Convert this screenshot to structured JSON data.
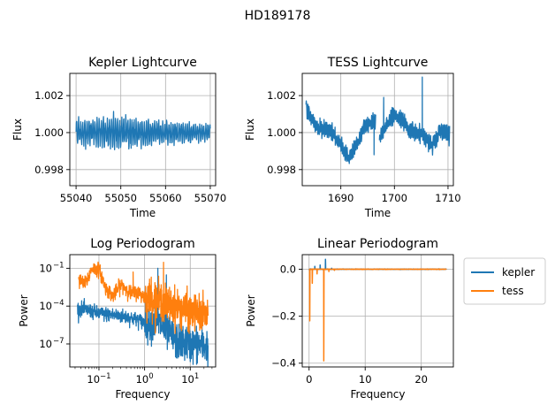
{
  "title": "HD189178",
  "colors": {
    "kepler": "#1f77b4",
    "tess": "#ff7f0e",
    "grid": "#b0b0b0",
    "axes": "#000000",
    "legend_border": "#cccccc"
  },
  "legend": {
    "placement": "right-of-bottom-right-panel",
    "entries": [
      {
        "name": "kepler",
        "color": "#1f77b4"
      },
      {
        "name": "tess",
        "color": "#ff7f0e"
      }
    ]
  },
  "chart_data": [
    {
      "id": "kepler-lightcurve",
      "type": "line",
      "title": "Kepler Lightcurve",
      "xlabel": "Time",
      "ylabel": "Flux",
      "xlim": [
        55038.6,
        55071.2
      ],
      "ylim": [
        0.99713,
        1.0032
      ],
      "xticks": [
        55040,
        55050,
        55060,
        55070
      ],
      "yticks": [
        0.998,
        1.0,
        1.002
      ],
      "ytick_labels": [
        "0.998",
        "1.000",
        "1.002"
      ],
      "grid": true,
      "series": [
        {
          "color": "#1f77b4",
          "x_range": [
            55040,
            55070
          ],
          "baseline": 1.0,
          "envelope": [
            [
              55040,
              0.0008
            ],
            [
              55045,
              0.0009
            ],
            [
              55050,
              0.00105
            ],
            [
              55055,
              0.0009
            ],
            [
              55060,
              0.00065
            ],
            [
              55065,
              0.0006
            ],
            [
              55070,
              0.0005
            ]
          ]
        }
      ]
    },
    {
      "id": "tess-lightcurve",
      "type": "line",
      "title": "TESS Lightcurve",
      "xlabel": "Time",
      "ylabel": "Flux",
      "xlim": [
        1682.8,
        1711.0
      ],
      "ylim": [
        0.99713,
        1.0032
      ],
      "xticks": [
        1690,
        1700,
        1710
      ],
      "yticks": [
        0.998,
        1.0,
        1.002
      ],
      "ytick_labels": [
        "0.998",
        "1.000",
        "1.002"
      ],
      "grid": true,
      "series": [
        {
          "color": "#1f77b4",
          "x_range": [
            1683.5,
            1710.3
          ],
          "segments": [
            [
              1683.5,
              1696.5
            ],
            [
              1697.2,
              1710.3
            ]
          ],
          "trend": [
            [
              1683.5,
              1.0013
            ],
            [
              1685.5,
              1.0003
            ],
            [
              1688.0,
              1.0001
            ],
            [
              1690.0,
              0.9993
            ],
            [
              1691.5,
              0.9986
            ],
            [
              1693.0,
              0.9994
            ],
            [
              1694.5,
              1.0004
            ],
            [
              1696.5,
              1.0006
            ],
            [
              1697.2,
              0.9996
            ],
            [
              1698.5,
              1.0004
            ],
            [
              1700.0,
              1.001
            ],
            [
              1701.5,
              1.0006
            ],
            [
              1703.0,
              1.0001
            ],
            [
              1705.0,
              1.0
            ],
            [
              1707.0,
              0.9993
            ],
            [
              1708.5,
              1.0001
            ],
            [
              1710.3,
              0.9999
            ]
          ],
          "spikes": [
            [
              1705.2,
              1.003
            ],
            [
              1696.2,
              0.9988
            ],
            [
              1698.0,
              1.0019
            ]
          ]
        }
      ]
    },
    {
      "id": "log-periodogram",
      "type": "line",
      "title": "Log Periodogram",
      "xlabel": "Frequency",
      "ylabel": "Power",
      "xscale": "log",
      "yscale": "log",
      "xlim": [
        0.023,
        36
      ],
      "ylim": [
        1.5e-09,
        1.2
      ],
      "xticks": [
        0.1,
        1,
        10
      ],
      "xtick_labels": [
        "10",
        "10",
        "10"
      ],
      "xtick_exponents": [
        "−1",
        "0",
        "1"
      ],
      "yticks": [
        1e-07,
        0.0001,
        0.1
      ],
      "ytick_labels": [
        "10",
        "10",
        "10"
      ],
      "ytick_exponents": [
        "−7",
        "−4",
        "−1"
      ],
      "grid": true,
      "series": [
        {
          "name": "kepler",
          "color": "#1f77b4",
          "x_range": [
            0.034,
            24.5
          ],
          "trend_log10": [
            [
              0.034,
              -4.2
            ],
            [
              0.1,
              -4.6
            ],
            [
              0.3,
              -4.8
            ],
            [
              1,
              -5.3
            ],
            [
              2.0,
              -5.3
            ],
            [
              3.0,
              -6.0
            ],
            [
              5,
              -6.8
            ],
            [
              10,
              -7.0
            ],
            [
              24.5,
              -7.2
            ]
          ],
          "spikes": [
            [
              1.95,
              0.1
            ],
            [
              3.0,
              0.03
            ],
            [
              1.05,
              0.003
            ]
          ]
        },
        {
          "name": "tess",
          "color": "#ff7f0e",
          "x_range": [
            0.036,
            24.5
          ],
          "trend_log10": [
            [
              0.036,
              -2.0
            ],
            [
              0.05,
              -2.25
            ],
            [
              0.07,
              -1.0
            ],
            [
              0.1,
              -1.1
            ],
            [
              0.14,
              -2.6
            ],
            [
              0.2,
              -3.2
            ],
            [
              0.3,
              -2.3
            ],
            [
              0.5,
              -3.0
            ],
            [
              0.7,
              -2.9
            ],
            [
              1.0,
              -3.3
            ],
            [
              2,
              -3.5
            ],
            [
              3,
              -3.8
            ],
            [
              5,
              -4.1
            ],
            [
              10,
              -4.5
            ],
            [
              24.5,
              -4.8
            ]
          ],
          "spikes": [
            [
              0.56,
              0.05
            ],
            [
              2.6,
              0.3
            ],
            [
              1.4,
              0.02
            ]
          ]
        }
      ]
    },
    {
      "id": "linear-periodogram",
      "type": "line",
      "title": "Linear Periodogram",
      "xlabel": "Frequency",
      "ylabel": "Power",
      "xlim": [
        -1.22,
        25.72
      ],
      "ylim": [
        -0.416,
        0.062
      ],
      "xticks": [
        0,
        10,
        20
      ],
      "yticks": [
        -0.4,
        -0.2,
        0.0
      ],
      "ytick_labels": [
        "−0.4",
        "−0.2",
        "0.0"
      ],
      "xtick_labels": [
        "0",
        "10",
        "20"
      ],
      "grid": true,
      "series": [
        {
          "name": "kepler",
          "color": "#1f77b4",
          "x_range": [
            0.03,
            24.5
          ],
          "features": [
            [
              0.05,
              -0.005
            ],
            [
              1.0,
              0.012
            ],
            [
              1.95,
              0.018
            ],
            [
              2.9,
              0.042
            ],
            [
              4.0,
              0.004
            ]
          ]
        },
        {
          "name": "tess",
          "color": "#ff7f0e",
          "x_range": [
            0.03,
            24.5
          ],
          "features": [
            [
              0.1,
              -0.22
            ],
            [
              0.55,
              -0.06
            ],
            [
              1.4,
              -0.02
            ],
            [
              2.6,
              -0.39
            ],
            [
              3.5,
              -0.01
            ],
            [
              4.5,
              -0.005
            ]
          ]
        }
      ]
    }
  ]
}
